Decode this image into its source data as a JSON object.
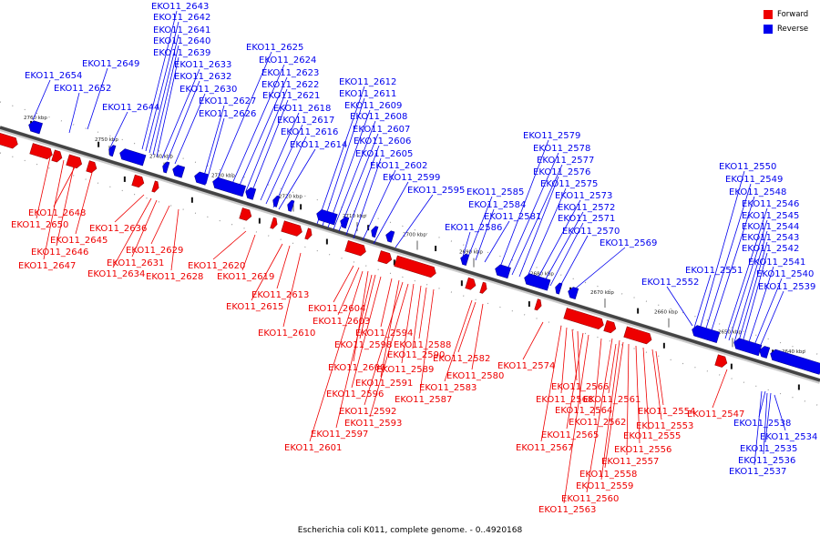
{
  "legend": {
    "forward": {
      "label": "Forward",
      "color": "#ee0000"
    },
    "reverse": {
      "label": "Reverse",
      "color": "#0000ee"
    }
  },
  "caption": "Escherichia coli K011, complete genome. - 0..4920168",
  "kbp_labels": [
    "2760 kbp",
    "2750 kbp",
    "2740 kbp",
    "2730 kbp",
    "2720 kbp",
    "2710 kbp",
    "2700 kbp",
    "2690 kbp",
    "2680 kbp",
    "2670 kbp",
    "2660 kbp",
    "2650 kbp",
    "2640 kbp"
  ],
  "reverse_labels": [
    "EKO11_2643",
    "EKO11_2642",
    "EKO11_2641",
    "EKO11_2640",
    "EKO11_2639",
    "EKO11_2633",
    "EKO11_2632",
    "EKO11_2630",
    "EKO11_2654",
    "EKO11_2649",
    "EKO11_2652",
    "EKO11_2644",
    "EKO11_2625",
    "EKO11_2624",
    "EKO11_2623",
    "EKO11_2622",
    "EKO11_2621",
    "EKO11_2627",
    "EKO11_2626",
    "EKO11_2618",
    "EKO11_2617",
    "EKO11_2616",
    "EKO11_2614",
    "EKO11_2612",
    "EKO11_2611",
    "EKO11_2609",
    "EKO11_2608",
    "EKO11_2607",
    "EKO11_2606",
    "EKO11_2605",
    "EKO11_2602",
    "EKO11_2599",
    "EKO11_2595",
    "EKO11_2585",
    "EKO11_2584",
    "EKO11_2581",
    "EKO11_2586",
    "EKO11_2579",
    "EKO11_2578",
    "EKO11_2577",
    "EKO11_2576",
    "EKO11_2575",
    "EKO11_2573",
    "EKO11_2572",
    "EKO11_2571",
    "EKO11_2570",
    "EKO11_2569",
    "EKO11_2550",
    "EKO11_2549",
    "EKO11_2548",
    "EKO11_2546",
    "EKO11_2545",
    "EKO11_2544",
    "EKO11_2543",
    "EKO11_2542",
    "EKO11_2541",
    "EKO11_2540",
    "EKO11_2539",
    "EKO11_2551",
    "EKO11_2552",
    "EKO11_2538",
    "EKO11_2534",
    "EKO11_2535",
    "EKO11_2536",
    "EKO11_2537"
  ],
  "forward_labels": [
    "EKO11_2648",
    "EKO11_2650",
    "EKO11_2645",
    "EKO11_2646",
    "EKO11_2647",
    "EKO11_2636",
    "EKO11_2631",
    "EKO11_2634",
    "EKO11_2629",
    "EKO11_2628",
    "EKO11_2620",
    "EKO11_2619",
    "EKO11_2613",
    "EKO11_2615",
    "EKO11_2610",
    "EKO11_2604",
    "EKO11_2603",
    "EKO11_2594",
    "EKO11_2598",
    "EKO11_2600",
    "EKO11_2591",
    "EKO11_2596",
    "EKO11_2592",
    "EKO11_2593",
    "EKO11_2597",
    "EKO11_2601",
    "EKO11_2590",
    "EKO11_2588",
    "EKO11_2589",
    "EKO11_2587",
    "EKO11_2582",
    "EKO11_2580",
    "EKO11_2583",
    "EKO11_2574",
    "EKO11_2566",
    "EKO11_2568",
    "EKO11_2564",
    "EKO11_2565",
    "EKO11_2567",
    "EKO11_2562",
    "EKO11_2561",
    "EKO11_2554",
    "EKO11_2553",
    "EKO11_2555",
    "EKO11_2556",
    "EKO11_2557",
    "EKO11_2558",
    "EKO11_2559",
    "EKO11_2560",
    "EKO11_2563",
    "EKO11_2547"
  ]
}
